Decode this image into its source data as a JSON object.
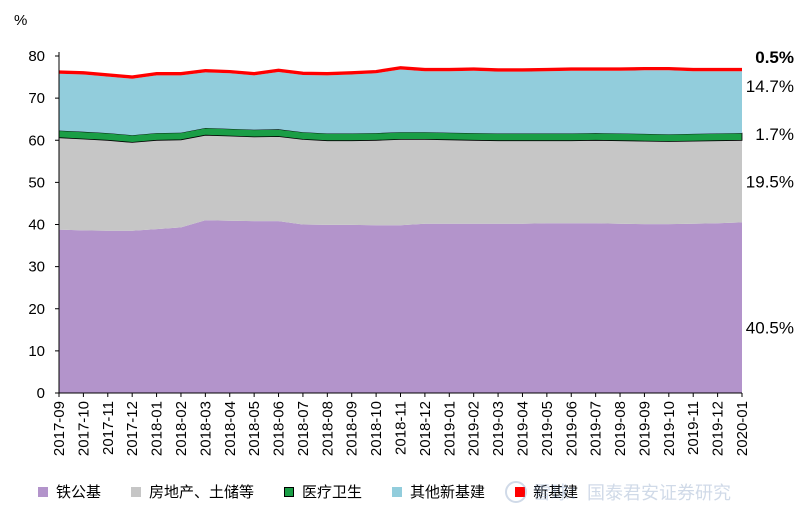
{
  "chart_data": {
    "type": "area",
    "stacked": true,
    "y_unit_label": "%",
    "ylim": [
      0,
      80
    ],
    "yticks": [
      0,
      10,
      20,
      30,
      40,
      50,
      60,
      70,
      80
    ],
    "grid": false,
    "legend_position": "bottom",
    "categories": [
      "2017-09",
      "2017-10",
      "2017-11",
      "2017-12",
      "2018-01",
      "2018-02",
      "2018-03",
      "2018-04",
      "2018-05",
      "2018-06",
      "2018-07",
      "2018-08",
      "2018-09",
      "2018-10",
      "2018-11",
      "2018-12",
      "2019-01",
      "2019-02",
      "2019-03",
      "2019-04",
      "2019-05",
      "2019-06",
      "2019-07",
      "2019-08",
      "2019-09",
      "2019-10",
      "2019-11",
      "2019-12",
      "2020-01"
    ],
    "series": [
      {
        "name": "铁公基",
        "color": "#b394cb",
        "values": [
          38.8,
          38.6,
          38.5,
          38.5,
          38.9,
          39.3,
          41.0,
          40.9,
          40.8,
          40.8,
          40.0,
          39.9,
          39.9,
          39.8,
          39.8,
          40.2,
          40.2,
          40.2,
          40.2,
          40.2,
          40.3,
          40.3,
          40.3,
          40.2,
          40.1,
          40.1,
          40.2,
          40.3,
          40.5
        ]
      },
      {
        "name": "房地产、土储等",
        "color": "#c6c6c6",
        "values": [
          21.8,
          21.7,
          21.5,
          21.0,
          21.1,
          20.8,
          20.2,
          20.1,
          20.0,
          20.1,
          20.2,
          20.0,
          20.0,
          20.2,
          20.4,
          20.0,
          19.9,
          19.8,
          19.7,
          19.7,
          19.6,
          19.6,
          19.7,
          19.7,
          19.7,
          19.6,
          19.6,
          19.6,
          19.5
        ]
      },
      {
        "name": "医疗卫生",
        "color": "#1a9e46",
        "values": [
          1.7,
          1.7,
          1.7,
          1.7,
          1.7,
          1.7,
          1.7,
          1.7,
          1.7,
          1.7,
          1.7,
          1.7,
          1.7,
          1.7,
          1.7,
          1.7,
          1.7,
          1.7,
          1.7,
          1.7,
          1.7,
          1.7,
          1.7,
          1.7,
          1.7,
          1.7,
          1.7,
          1.7,
          1.7
        ]
      },
      {
        "name": "其他新基建",
        "color": "#92cddc",
        "values": [
          13.5,
          13.6,
          13.4,
          13.4,
          13.7,
          13.6,
          13.2,
          13.2,
          12.9,
          13.6,
          13.6,
          13.8,
          14.0,
          14.2,
          14.9,
          14.5,
          14.6,
          14.8,
          14.7,
          14.7,
          14.8,
          14.9,
          14.8,
          14.9,
          15.1,
          15.2,
          14.9,
          14.8,
          14.7
        ]
      },
      {
        "name": "新基建",
        "color": "#ff0000",
        "values": [
          0.5,
          0.5,
          0.5,
          0.5,
          0.5,
          0.5,
          0.5,
          0.5,
          0.5,
          0.5,
          0.5,
          0.5,
          0.5,
          0.5,
          0.5,
          0.5,
          0.5,
          0.5,
          0.5,
          0.5,
          0.5,
          0.5,
          0.5,
          0.5,
          0.5,
          0.5,
          0.5,
          0.5,
          0.5
        ]
      }
    ],
    "end_labels": [
      "40.5%",
      "19.5%",
      "1.7%",
      "14.7%",
      "0.5%"
    ],
    "legend_entries": [
      "铁公基",
      "房地产、土储等",
      "医疗卫生",
      "其他新基建",
      "新基建"
    ],
    "watermark": "雪球：国泰君安证券研究"
  }
}
